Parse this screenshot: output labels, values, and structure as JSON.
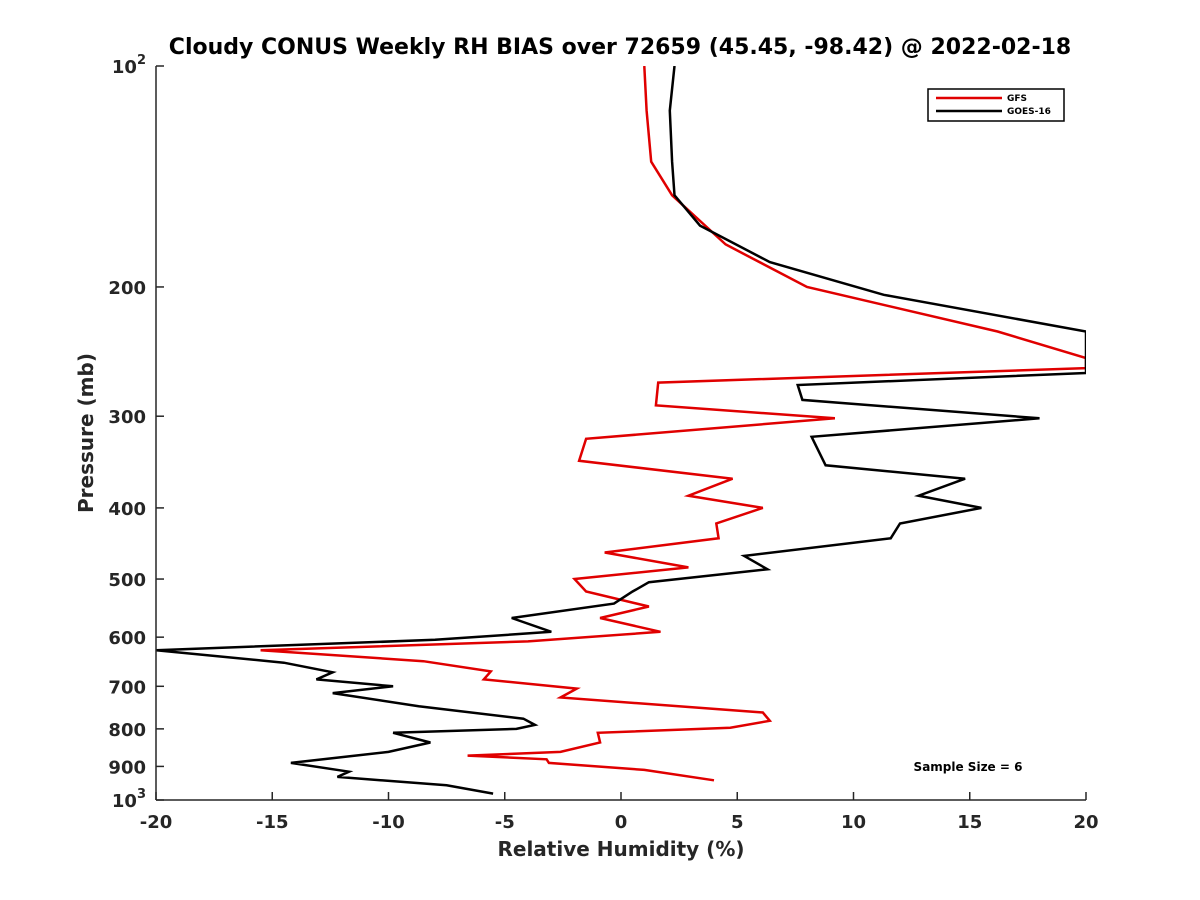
{
  "chart_data": {
    "type": "line",
    "title": "Cloudy CONUS Weekly RH BIAS over 72659 (45.45, -98.42) @ 2022-02-18",
    "xlabel": "Relative Humidity (%)",
    "ylabel": "Pressure (mb)",
    "xlim": [
      -20,
      20
    ],
    "ylim": [
      100,
      1000
    ],
    "y_scale": "log",
    "y_reversed": true,
    "x_ticks": [
      -20,
      -15,
      -10,
      -5,
      0,
      5,
      10,
      15,
      20
    ],
    "y_ticks": [
      100,
      200,
      300,
      400,
      500,
      600,
      700,
      800,
      900,
      1000
    ],
    "y_tick_labels": {
      "100": {
        "base": "10",
        "exp": "2"
      },
      "200": "200",
      "300": "300",
      "400": "400",
      "500": "500",
      "600": "600",
      "700": "700",
      "800": "800",
      "900": "900",
      "1000": {
        "base": "10",
        "exp": "3"
      }
    },
    "legend_position": "top-right",
    "grid": false,
    "annotation": "Sample Size = 6",
    "series": [
      {
        "name": "GFS",
        "color": "#e00000",
        "x": [
          1.0,
          1.1,
          1.3,
          2.2,
          4.5,
          8,
          16.2,
          20,
          20,
          1.6,
          1.5,
          9.2,
          -1.5,
          -1.8,
          4.8,
          2.9,
          6.1,
          4.1,
          4.2,
          -0.7,
          2.9,
          -2.0,
          -1.5,
          1.2,
          -0.9,
          1.7,
          -4.0,
          -15.5,
          -8.5,
          -5.6,
          -5.9,
          -1.9,
          -2.6,
          6.1,
          6.4,
          4.7,
          -1.0,
          -0.9,
          -2.6,
          -6.6,
          -3.2,
          -3.1,
          1.0,
          4.0
        ],
        "y": [
          100,
          115,
          135,
          150,
          175,
          200,
          230,
          250,
          258,
          270,
          290,
          302,
          322,
          345,
          365,
          385,
          400,
          420,
          440,
          460,
          482,
          500,
          520,
          545,
          565,
          590,
          608,
          625,
          647,
          668,
          685,
          705,
          725,
          760,
          780,
          797,
          810,
          835,
          860,
          870,
          880,
          890,
          910,
          940
        ]
      },
      {
        "name": "GOES-16",
        "color": "#000000",
        "x": [
          2.3,
          2.1,
          2.2,
          2.3,
          3.4,
          6.4,
          11.3,
          20,
          20,
          7.6,
          7.8,
          18,
          8.2,
          8.8,
          14.8,
          12.8,
          15.5,
          12,
          11.6,
          5.3,
          6.3,
          1.2,
          0.5,
          -0.3,
          -4.7,
          -3.0,
          -8.0,
          -20,
          -14.5,
          -12.4,
          -13.1,
          -9.8,
          -12.4,
          -8.7,
          -4.2,
          -3.7,
          -4.5,
          -9.8,
          -8.2,
          -10.0,
          -14.2,
          -11.7,
          -12.2,
          -7.5,
          -5.5
        ],
        "y": [
          100,
          115,
          135,
          150,
          165,
          185,
          205,
          230,
          262,
          272,
          285,
          302,
          320,
          350,
          365,
          385,
          400,
          420,
          440,
          465,
          485,
          505,
          520,
          540,
          565,
          590,
          605,
          625,
          650,
          670,
          685,
          700,
          715,
          745,
          775,
          790,
          800,
          810,
          835,
          860,
          890,
          915,
          930,
          955,
          980
        ]
      }
    ]
  }
}
